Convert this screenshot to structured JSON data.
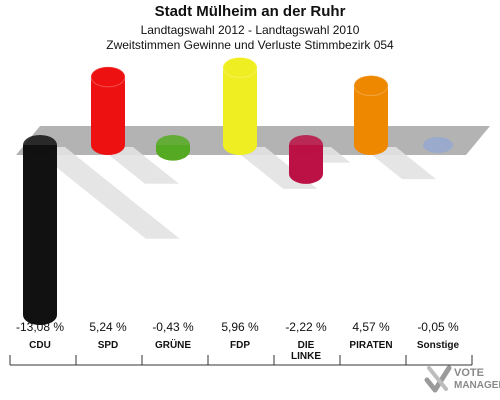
{
  "header": {
    "title": "Stadt Mülheim an der Ruhr",
    "subtitle1": "Landtagswahl 2012 - Landtagswahl 2010",
    "subtitle2": "Zweitstimmen Gewinne und Verluste Stimmbezirk 054"
  },
  "logo": {
    "line1": "VOTE",
    "line2": "MANAGER"
  },
  "colors": {
    "CDU": "#111111",
    "SPD": "#ee1111",
    "GRÜNE": "#55aa22",
    "FDP": "#eeee22",
    "DIE LINKE": "#bb1144",
    "PIRATEN": "#ee8800",
    "Sonstige": "#99aacc",
    "baseline": "#b3b3b3"
  },
  "chart_data": {
    "type": "bar",
    "title": "Stadt Mülheim an der Ruhr",
    "categories": [
      "CDU",
      "SPD",
      "GRÜNE",
      "FDP",
      "DIE LINKE",
      "PIRATEN",
      "Sonstige"
    ],
    "category_labels": [
      [
        "CDU"
      ],
      [
        "SPD"
      ],
      [
        "GRÜNE"
      ],
      [
        "FDP"
      ],
      [
        "DIE",
        "LINKE"
      ],
      [
        "PIRATEN"
      ],
      [
        "Sonstige"
      ]
    ],
    "values": [
      -13.08,
      5.24,
      -0.43,
      5.96,
      -2.22,
      4.57,
      -0.05
    ],
    "value_labels": [
      "-13,08 %",
      "5,24 %",
      "-0,43 %",
      "5,96 %",
      "-2,22 %",
      "4,57 %",
      "-0,05 %"
    ],
    "unit": "%",
    "ylim": [
      -13.08,
      5.96
    ],
    "grid": false,
    "legend": "none"
  }
}
